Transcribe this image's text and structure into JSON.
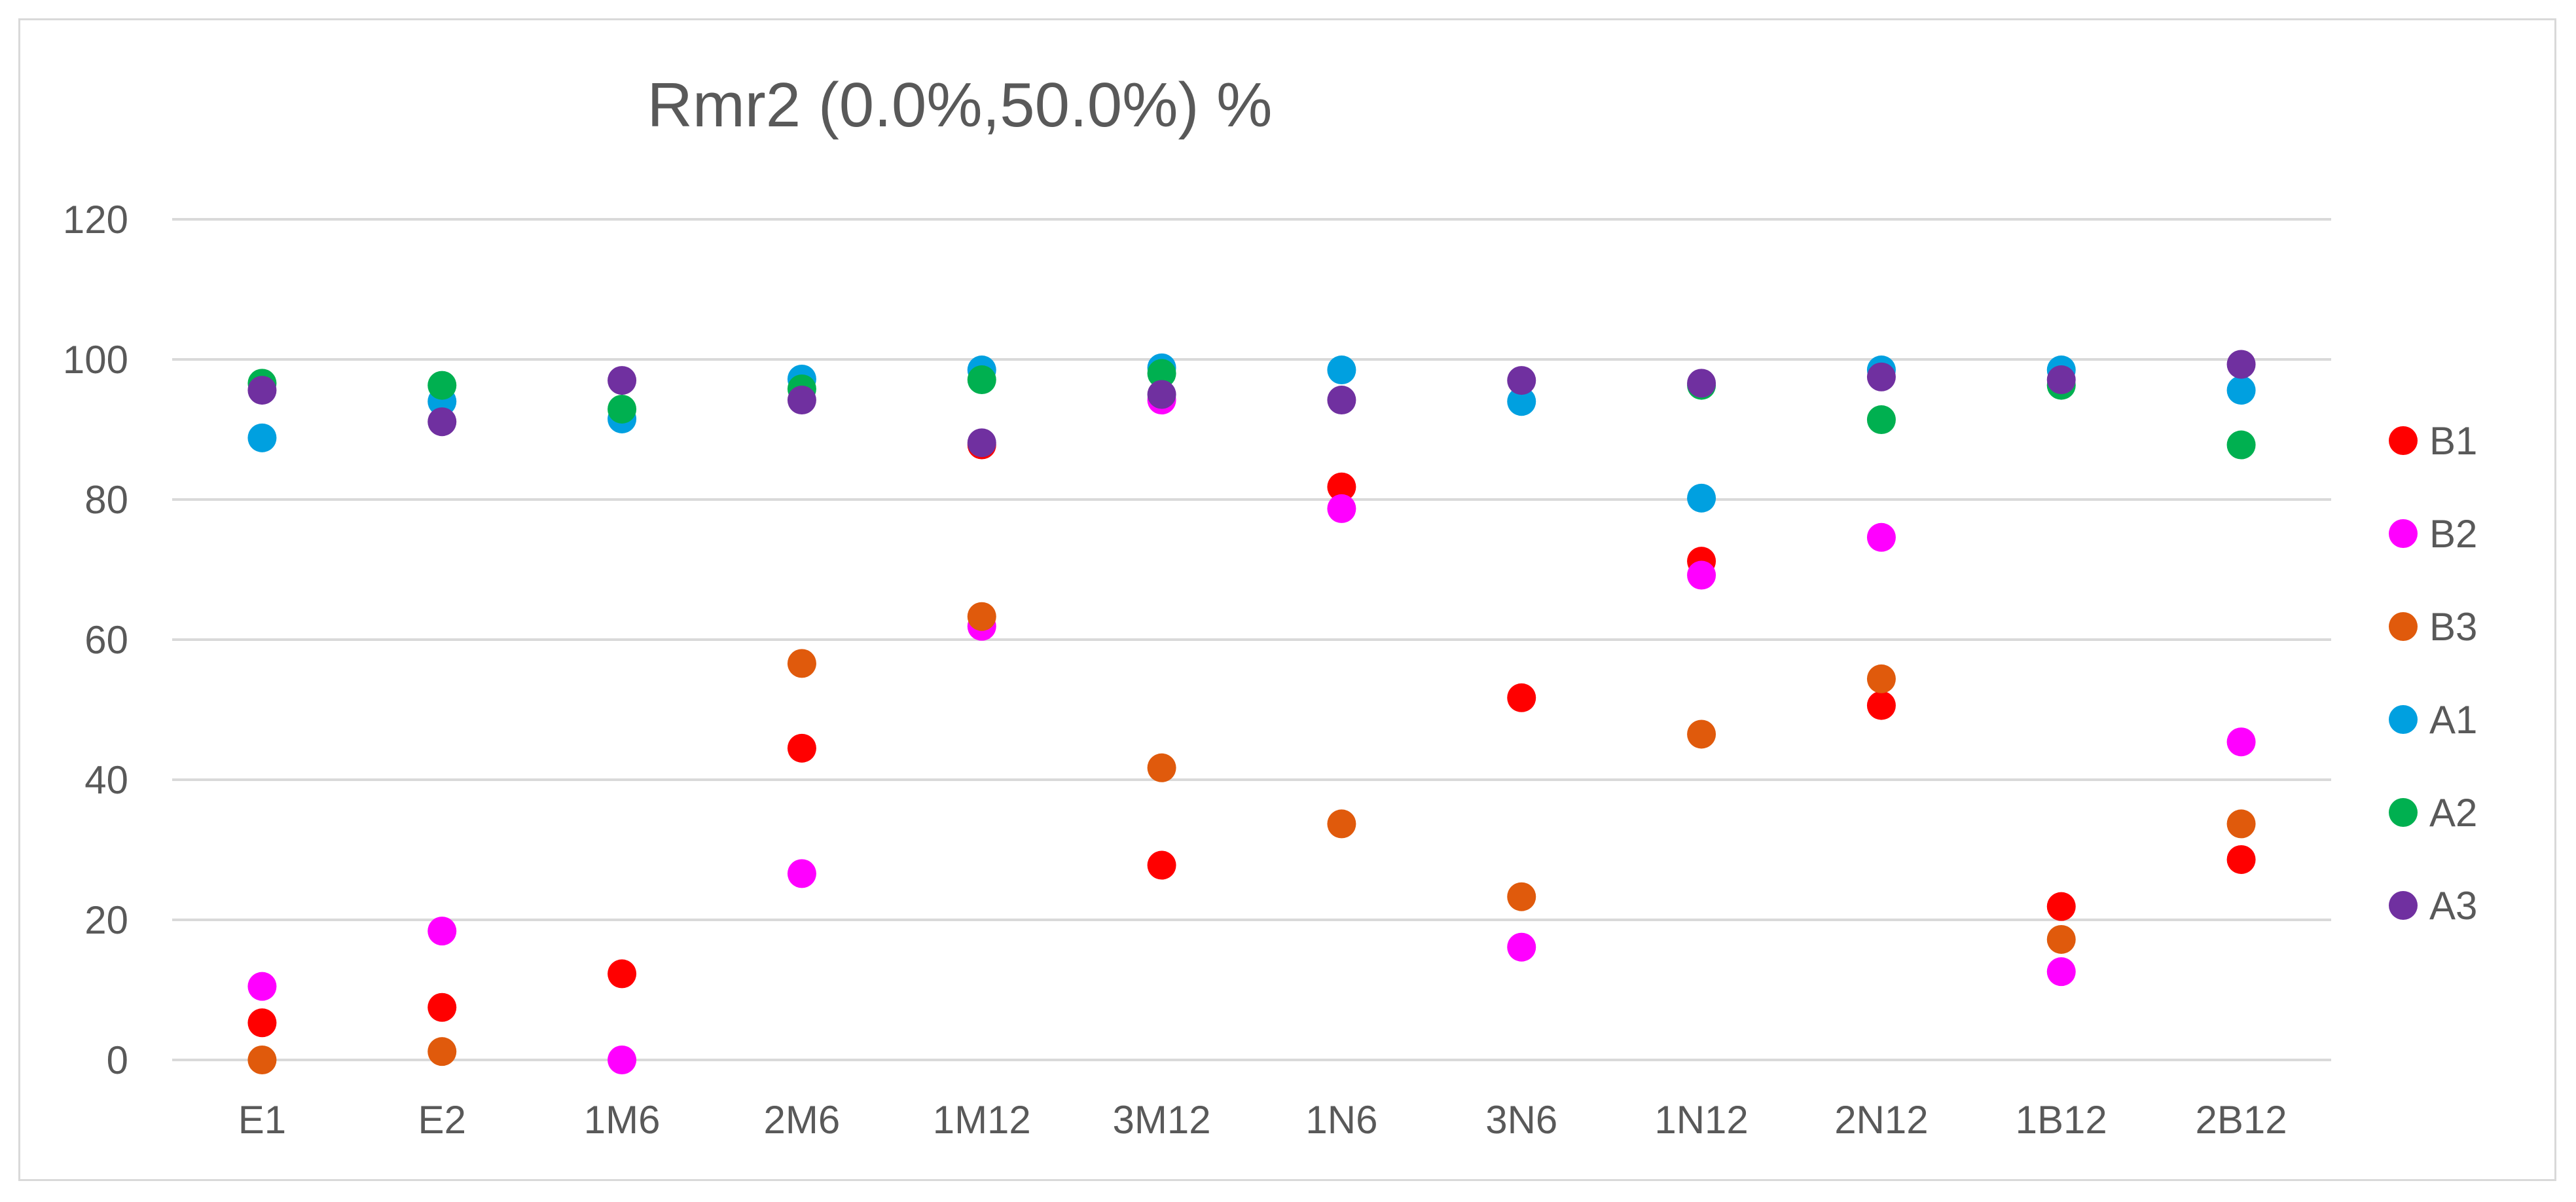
{
  "chart_data": {
    "type": "scatter",
    "title": "Rmr2 (0.0%,50.0%)  %",
    "xlabel": "",
    "ylabel": "",
    "categories": [
      "E1",
      "E2",
      "1M6",
      "2M6",
      "1M12",
      "3M12",
      "1N6",
      "3N6",
      "1N12",
      "2N12",
      "1B12",
      "2B12"
    ],
    "ylim": [
      0,
      120
    ],
    "yticks": [
      0,
      20,
      40,
      60,
      80,
      100,
      120
    ],
    "grid": "horizontal",
    "legend_position": "right",
    "series": [
      {
        "name": "B1",
        "color": "#ff0000",
        "values": [
          5.3,
          7.5,
          12.3,
          44.5,
          87.8,
          27.8,
          81.8,
          51.7,
          71.2,
          50.6,
          21.9,
          28.6
        ]
      },
      {
        "name": "B2",
        "color": "#ff00ff",
        "values": [
          10.5,
          18.4,
          0.0,
          26.6,
          61.9,
          94.2,
          78.7,
          16.1,
          69.2,
          74.6,
          12.6,
          45.4
        ]
      },
      {
        "name": "B3",
        "color": "#e05a0c",
        "values": [
          0.0,
          1.2,
          null,
          56.6,
          63.3,
          41.7,
          33.7,
          23.3,
          46.5,
          54.4,
          17.2,
          33.7
        ]
      },
      {
        "name": "A1",
        "color": "#00a0e0",
        "values": [
          88.8,
          94.0,
          91.5,
          97.2,
          98.5,
          98.8,
          98.5,
          94.0,
          80.2,
          98.5,
          98.5,
          95.6
        ]
      },
      {
        "name": "A2",
        "color": "#00b050",
        "values": [
          96.6,
          96.3,
          92.9,
          95.8,
          97.1,
          98.0,
          null,
          null,
          96.3,
          91.4,
          96.3,
          87.8
        ]
      },
      {
        "name": "A3",
        "color": "#7030a0",
        "values": [
          95.6,
          91.1,
          97.0,
          94.2,
          88.1,
          95.0,
          94.2,
          97.0,
          96.6,
          97.5,
          97.1,
          99.3
        ]
      }
    ]
  }
}
